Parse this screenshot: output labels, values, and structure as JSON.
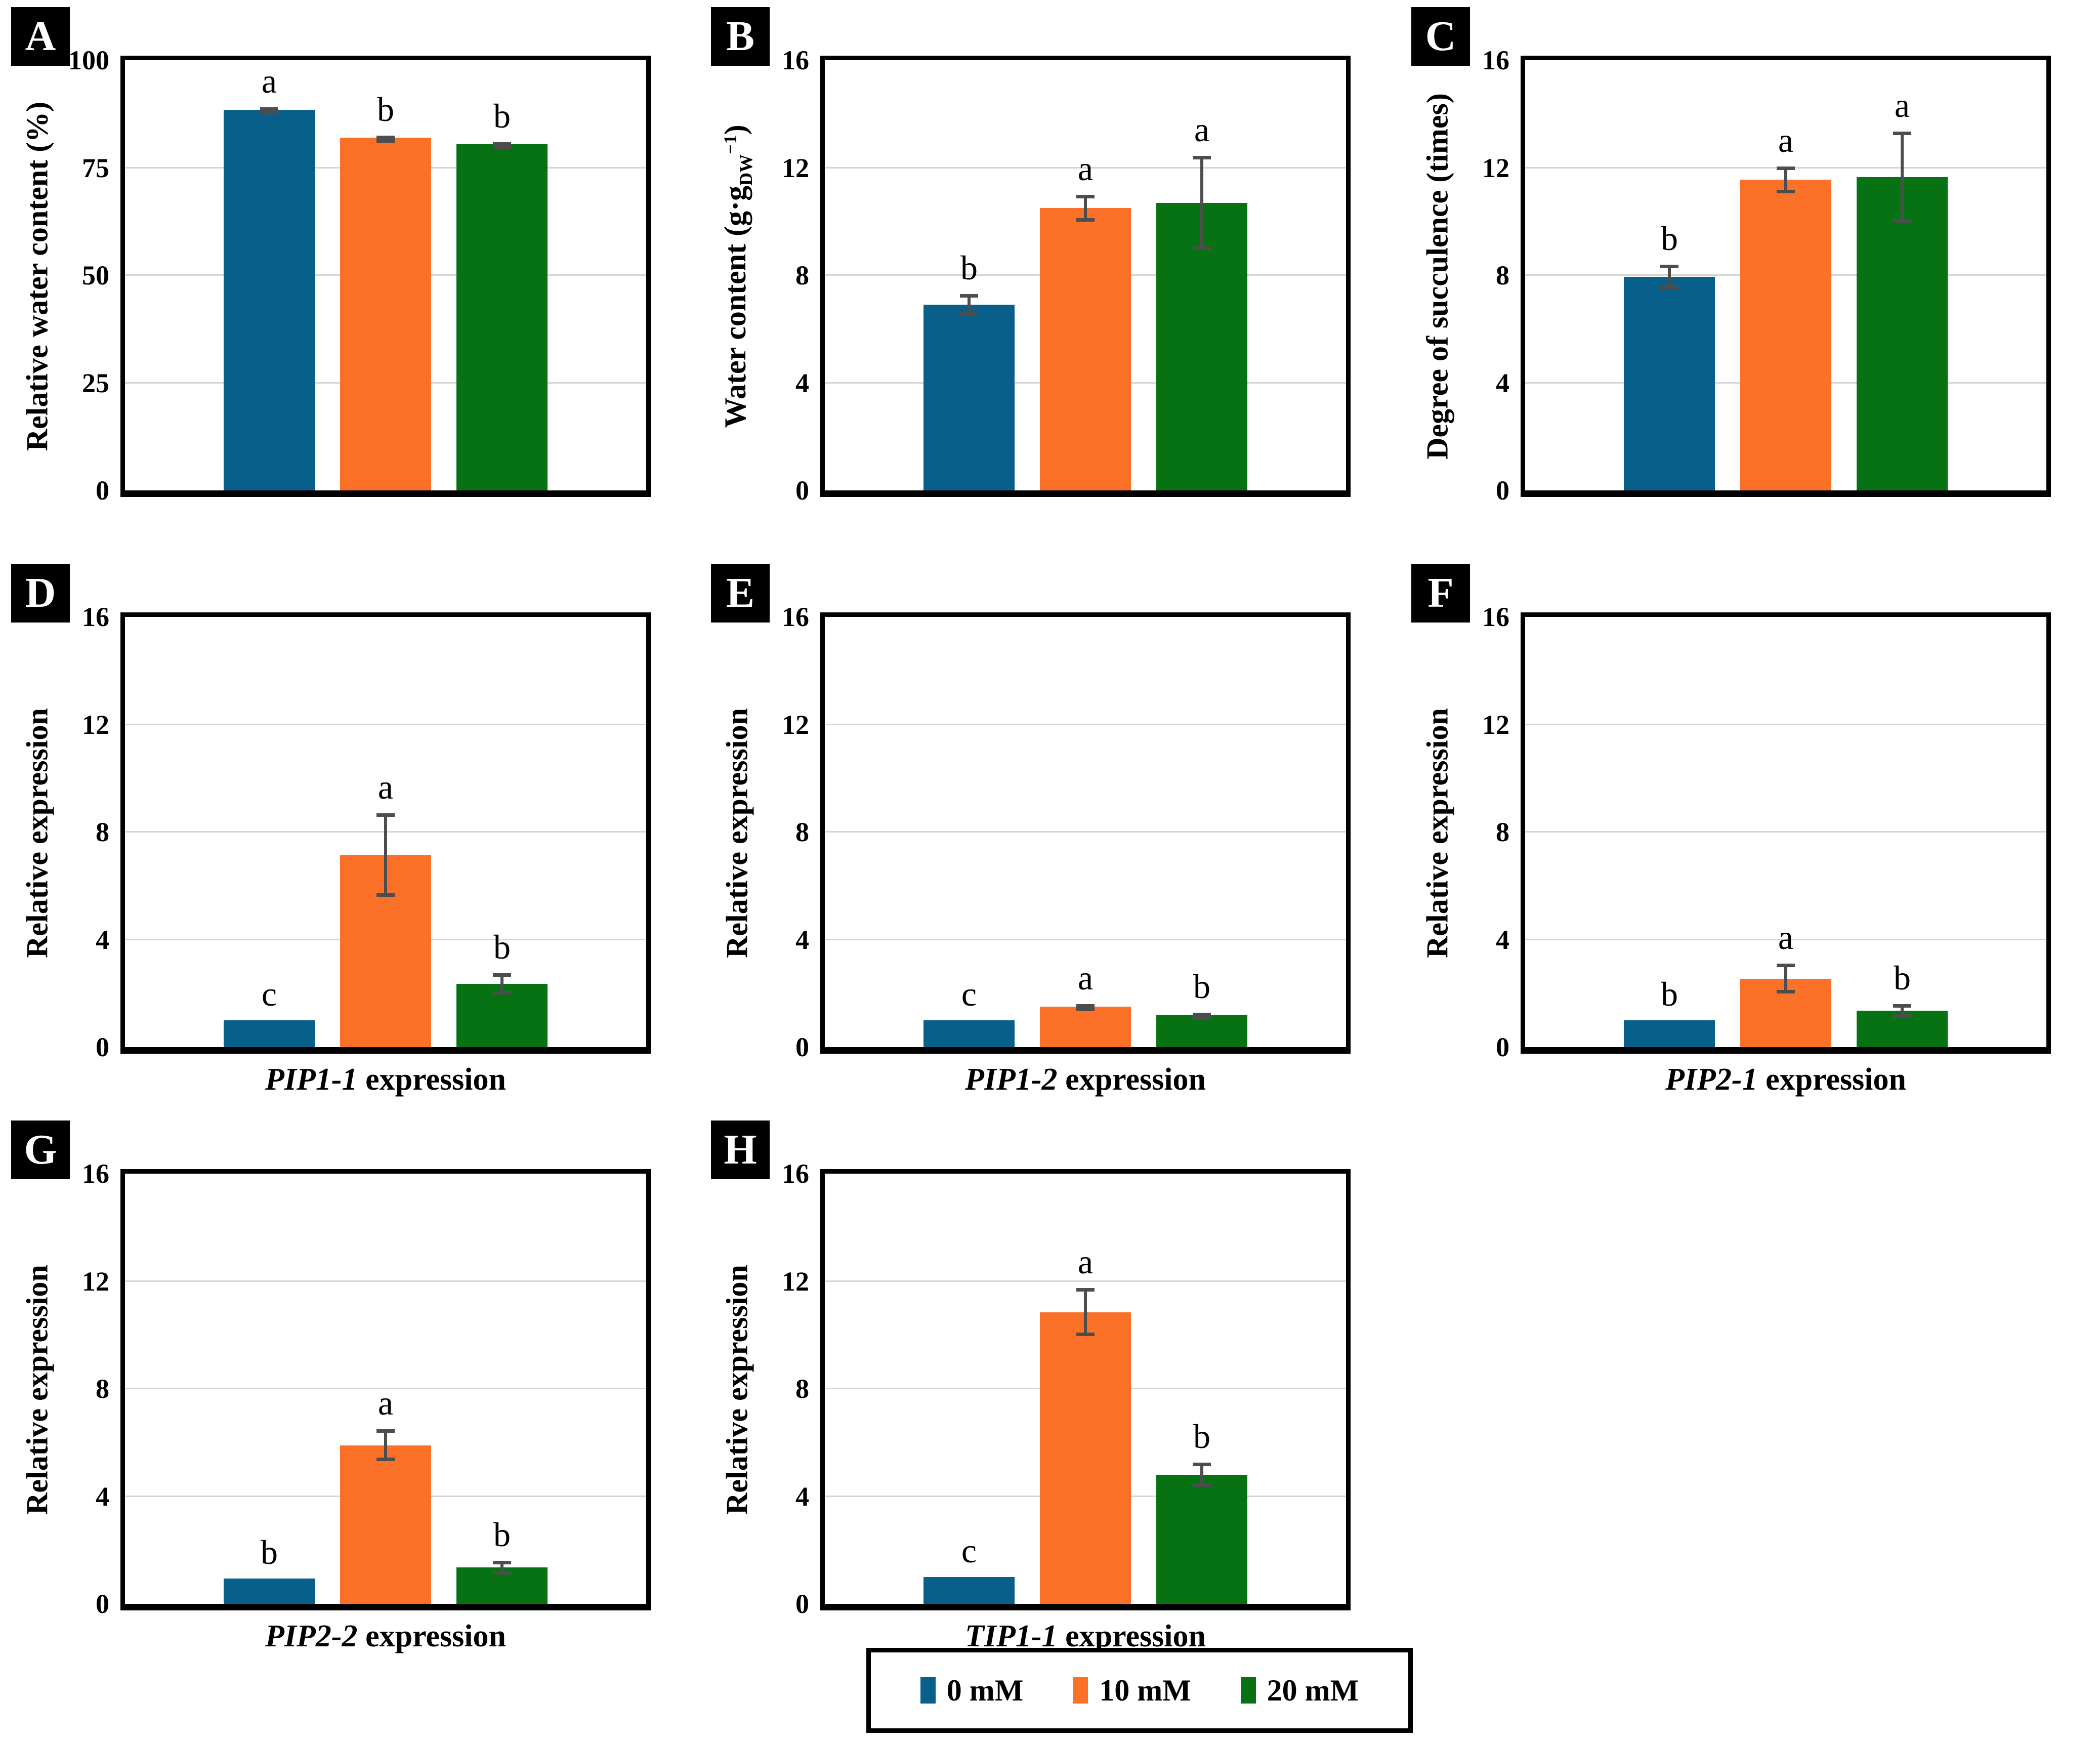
{
  "figure": {
    "series_labels": [
      "0 mM",
      "10 mM",
      "20 mM"
    ],
    "series_colors": [
      "#085f8a",
      "#fb7127",
      "#077213"
    ],
    "error_bar_color": "#4d4d4d",
    "gridline_color": "#d5d5d5",
    "panel_label_bg": "#000000",
    "panel_label_fg": "#ffffff"
  },
  "legend": {
    "items": [
      {
        "label": "0 mM",
        "color": "#085f8a"
      },
      {
        "label": "10 mM",
        "color": "#fb7127"
      },
      {
        "label": "20 mM",
        "color": "#077213"
      }
    ]
  },
  "chart_data": [
    {
      "panel": "A",
      "type": "bar",
      "ylabel": "Relative water content (%)",
      "xlabel": null,
      "ylim": [
        0,
        100
      ],
      "yticks": [
        0,
        25,
        50,
        75,
        100
      ],
      "grid": true,
      "categories": [
        "0 mM",
        "10 mM",
        "20 mM"
      ],
      "values": [
        88.5,
        82,
        80.5
      ],
      "errors": [
        0.6,
        0.5,
        0.5
      ],
      "sig_letters": [
        "a",
        "b",
        "b"
      ]
    },
    {
      "panel": "B",
      "type": "bar",
      "ylabel": "Water content (g·g_DW_^−1^)",
      "ylabel_rich": [
        {
          "text": "Water content (g·g"
        },
        {
          "text": "DW",
          "pos": "sub"
        },
        {
          "text": "−1",
          "pos": "sup"
        },
        {
          "text": ")"
        }
      ],
      "xlabel": null,
      "ylim": [
        0,
        16
      ],
      "yticks": [
        0,
        4,
        8,
        12,
        16
      ],
      "grid": true,
      "categories": [
        "0 mM",
        "10 mM",
        "20 mM"
      ],
      "values": [
        6.9,
        10.5,
        10.7
      ],
      "errors": [
        0.4,
        0.5,
        1.75
      ],
      "sig_letters": [
        "b",
        "a",
        "a"
      ]
    },
    {
      "panel": "C",
      "type": "bar",
      "ylabel": "Degree of succulence (times)",
      "xlabel": null,
      "ylim": [
        0,
        16
      ],
      "yticks": [
        0,
        4,
        8,
        12,
        16
      ],
      "grid": true,
      "categories": [
        "0 mM",
        "10 mM",
        "20 mM"
      ],
      "values": [
        7.95,
        11.55,
        11.65
      ],
      "errors": [
        0.45,
        0.5,
        1.7
      ],
      "sig_letters": [
        "b",
        "a",
        "a"
      ]
    },
    {
      "panel": "D",
      "type": "bar",
      "ylabel": "Relative expression",
      "xlabel": {
        "gene": "PIP1-1",
        "rest": " expression"
      },
      "ylim": [
        0,
        16
      ],
      "yticks": [
        0,
        4,
        8,
        12,
        16
      ],
      "grid": true,
      "categories": [
        "0 mM",
        "10 mM",
        "20 mM"
      ],
      "values": [
        1.0,
        7.15,
        2.35
      ],
      "errors": [
        0,
        1.55,
        0.4
      ],
      "sig_letters": [
        "c",
        "a",
        "b"
      ]
    },
    {
      "panel": "E",
      "type": "bar",
      "ylabel": "Relative expression",
      "xlabel": {
        "gene": "PIP1-2",
        "rest": " expression"
      },
      "ylim": [
        0,
        16
      ],
      "yticks": [
        0,
        4,
        8,
        12,
        16
      ],
      "grid": true,
      "categories": [
        "0 mM",
        "10 mM",
        "20 mM"
      ],
      "values": [
        1.0,
        1.5,
        1.2
      ],
      "errors": [
        0,
        0.1,
        0.08
      ],
      "sig_letters": [
        "c",
        "a",
        "b"
      ]
    },
    {
      "panel": "F",
      "type": "bar",
      "ylabel": "Relative expression",
      "xlabel": {
        "gene": "PIP2-1",
        "rest": " expression"
      },
      "ylim": [
        0,
        16
      ],
      "yticks": [
        0,
        4,
        8,
        12,
        16
      ],
      "grid": true,
      "categories": [
        "0 mM",
        "10 mM",
        "20 mM"
      ],
      "values": [
        1.0,
        2.55,
        1.35
      ],
      "errors": [
        0,
        0.55,
        0.25
      ],
      "sig_letters": [
        "b",
        "a",
        "b"
      ]
    },
    {
      "panel": "G",
      "type": "bar",
      "ylabel": "Relative expression",
      "xlabel": {
        "gene": "PIP2-2",
        "rest": " expression"
      },
      "ylim": [
        0,
        16
      ],
      "yticks": [
        0,
        4,
        8,
        12,
        16
      ],
      "grid": true,
      "categories": [
        "0 mM",
        "10 mM",
        "20 mM"
      ],
      "values": [
        0.95,
        5.9,
        1.35
      ],
      "errors": [
        0,
        0.6,
        0.25
      ],
      "sig_letters": [
        "b",
        "a",
        "b"
      ]
    },
    {
      "panel": "H",
      "type": "bar",
      "ylabel": "Relative expression",
      "xlabel": {
        "gene": "TIP1-1",
        "rest": " expression"
      },
      "ylim": [
        0,
        16
      ],
      "yticks": [
        0,
        4,
        8,
        12,
        16
      ],
      "grid": true,
      "categories": [
        "0 mM",
        "10 mM",
        "20 mM"
      ],
      "values": [
        1.0,
        10.85,
        4.8
      ],
      "errors": [
        0,
        0.9,
        0.45
      ],
      "sig_letters": [
        "c",
        "a",
        "b"
      ]
    }
  ]
}
